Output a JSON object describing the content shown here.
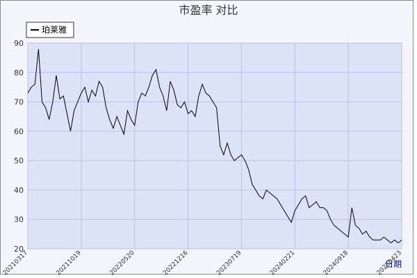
{
  "chart_data": {
    "type": "line",
    "title": "市盈率  对比",
    "x_label": "日期",
    "categories": [
      "20210317",
      null,
      null,
      null,
      null,
      null,
      null,
      null,
      null,
      null,
      null,
      null,
      null,
      null,
      null,
      "20211019",
      null,
      null,
      null,
      null,
      null,
      null,
      null,
      null,
      null,
      null,
      null,
      null,
      null,
      null,
      "20220520",
      null,
      null,
      null,
      null,
      null,
      null,
      null,
      null,
      null,
      null,
      null,
      null,
      null,
      null,
      "20221216",
      null,
      null,
      null,
      null,
      null,
      null,
      null,
      null,
      null,
      null,
      null,
      null,
      null,
      null,
      "20230719",
      null,
      null,
      null,
      null,
      null,
      null,
      null,
      null,
      null,
      null,
      null,
      null,
      null,
      null,
      "20240221",
      null,
      null,
      null,
      null,
      null,
      null,
      null,
      null,
      null,
      null,
      null,
      null,
      null,
      null,
      "20240918",
      null,
      null,
      null,
      null,
      null,
      null,
      null,
      null,
      null,
      null,
      null,
      null,
      null,
      null,
      "20250423"
    ],
    "series": [
      {
        "name": "珀莱雅",
        "color": "#000000",
        "values": [
          73,
          75,
          76,
          88,
          70,
          68,
          64,
          70,
          79,
          71,
          72,
          66,
          60,
          67,
          70,
          73,
          75,
          70,
          74,
          72,
          77,
          75,
          68,
          64,
          61,
          65,
          62,
          59,
          67,
          64,
          62,
          70,
          73,
          72,
          75,
          79,
          81,
          75,
          72,
          67,
          77,
          74,
          69,
          68,
          70,
          66,
          67,
          65,
          72,
          76,
          73,
          72,
          70,
          68,
          55,
          52,
          56,
          52,
          50,
          51,
          52,
          50,
          47,
          42,
          40,
          38,
          37,
          40,
          39,
          38,
          37,
          35,
          33,
          31,
          29,
          33,
          35,
          37,
          38,
          34,
          35,
          36,
          34,
          34,
          33,
          30,
          28,
          27,
          26,
          25,
          24,
          34,
          28,
          27,
          25,
          26,
          24,
          23,
          23,
          23,
          24,
          23,
          22,
          23,
          22,
          23
        ]
      }
    ],
    "ylim": [
      20,
      90
    ],
    "yticks": [
      20,
      30,
      40,
      50,
      60,
      70,
      80,
      90
    ],
    "grid": true
  }
}
